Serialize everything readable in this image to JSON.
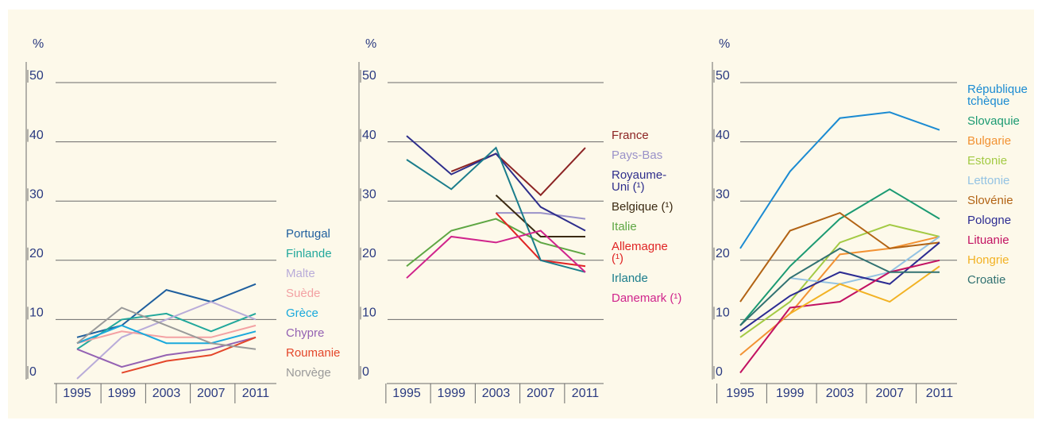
{
  "chart_data": [
    {
      "type": "line",
      "y_label": "%",
      "categories": [
        "1995",
        "1999",
        "2003",
        "2007",
        "2011"
      ],
      "ylim": [
        0,
        50
      ],
      "yticks": [
        0,
        10,
        20,
        30,
        40,
        50
      ],
      "grid": true,
      "series": [
        {
          "name": "Portugal",
          "color": "#1f5f9e",
          "values": [
            7,
            9,
            15,
            13,
            16
          ]
        },
        {
          "name": "Finlande",
          "color": "#22a89c",
          "values": [
            5,
            10,
            11,
            8,
            11
          ]
        },
        {
          "name": "Malte",
          "color": "#b9acd9",
          "values": [
            0,
            7,
            10,
            13,
            10
          ]
        },
        {
          "name": "Suède",
          "color": "#f3a1a3",
          "values": [
            6,
            8,
            7,
            7,
            9
          ]
        },
        {
          "name": "Grèce",
          "color": "#1aa9dc",
          "values": [
            6,
            9,
            6,
            6,
            8
          ]
        },
        {
          "name": "Chypre",
          "color": "#9462b3",
          "values": [
            5,
            2,
            4,
            5,
            7
          ]
        },
        {
          "name": "Roumanie",
          "color": "#e4462a",
          "values": [
            null,
            1,
            3,
            4,
            7
          ]
        },
        {
          "name": "Norvège",
          "color": "#9a9a9a",
          "values": [
            6,
            12,
            9,
            6,
            5
          ]
        }
      ]
    },
    {
      "type": "line",
      "y_label": "%",
      "categories": [
        "1995",
        "1999",
        "2003",
        "2007",
        "2011"
      ],
      "ylim": [
        0,
        50
      ],
      "yticks": [
        0,
        10,
        20,
        30,
        40,
        50
      ],
      "grid": true,
      "series": [
        {
          "name": "France",
          "color": "#8c2424",
          "values": [
            null,
            35,
            38,
            31,
            39
          ]
        },
        {
          "name": "Pays-Bas",
          "color": "#9a92c9",
          "values": [
            null,
            null,
            28,
            28,
            27
          ]
        },
        {
          "name": "Royaume-Uni (¹)",
          "color": "#2e2e8c",
          "values": [
            41,
            34.5,
            38,
            29,
            25
          ]
        },
        {
          "name": "Belgique (¹)",
          "color": "#3b2a12",
          "values": [
            null,
            null,
            31,
            24,
            24
          ]
        },
        {
          "name": "Italie",
          "color": "#5ea643",
          "values": [
            19,
            25,
            27,
            23,
            21
          ]
        },
        {
          "name": "Allemagne (¹)",
          "color": "#e02424",
          "values": [
            null,
            null,
            28,
            20,
            19
          ]
        },
        {
          "name": "Irlande",
          "color": "#1b7d8c",
          "values": [
            37,
            32,
            39,
            20,
            18
          ]
        },
        {
          "name": "Danemark (¹)",
          "color": "#d0248c",
          "values": [
            17,
            24,
            23,
            25,
            18
          ]
        }
      ]
    },
    {
      "type": "line",
      "y_label": "%",
      "categories": [
        "1995",
        "1999",
        "2003",
        "2007",
        "2011"
      ],
      "ylim": [
        0,
        50
      ],
      "yticks": [
        0,
        10,
        20,
        30,
        40,
        50
      ],
      "grid": true,
      "series": [
        {
          "name": "République tchèque",
          "color": "#1b8bd2",
          "values": [
            22,
            35,
            44,
            45,
            42
          ]
        },
        {
          "name": "Slovaquie",
          "color": "#1b9a72",
          "values": [
            9,
            19,
            27,
            32,
            27
          ]
        },
        {
          "name": "Bulgarie",
          "color": "#f29233",
          "values": [
            4,
            11,
            21,
            22,
            24
          ]
        },
        {
          "name": "Estonie",
          "color": "#a3ca44",
          "values": [
            7,
            13,
            23,
            26,
            24
          ]
        },
        {
          "name": "Lettonie",
          "color": "#94c3e3",
          "values": [
            null,
            17,
            16,
            18,
            24
          ]
        },
        {
          "name": "Slovénie",
          "color": "#b26314",
          "values": [
            13,
            25,
            28,
            22,
            23
          ]
        },
        {
          "name": "Pologne",
          "color": "#2c2c92",
          "values": [
            8,
            14,
            18,
            16,
            23
          ]
        },
        {
          "name": "Lituanie",
          "color": "#c21262",
          "values": [
            1,
            12,
            13,
            18,
            20
          ]
        },
        {
          "name": "Hongrie",
          "color": "#f2b224",
          "values": [
            null,
            11,
            16,
            13,
            19
          ]
        },
        {
          "name": "Croatie",
          "color": "#327272",
          "values": [
            9,
            17,
            22,
            18,
            18
          ]
        }
      ]
    }
  ]
}
